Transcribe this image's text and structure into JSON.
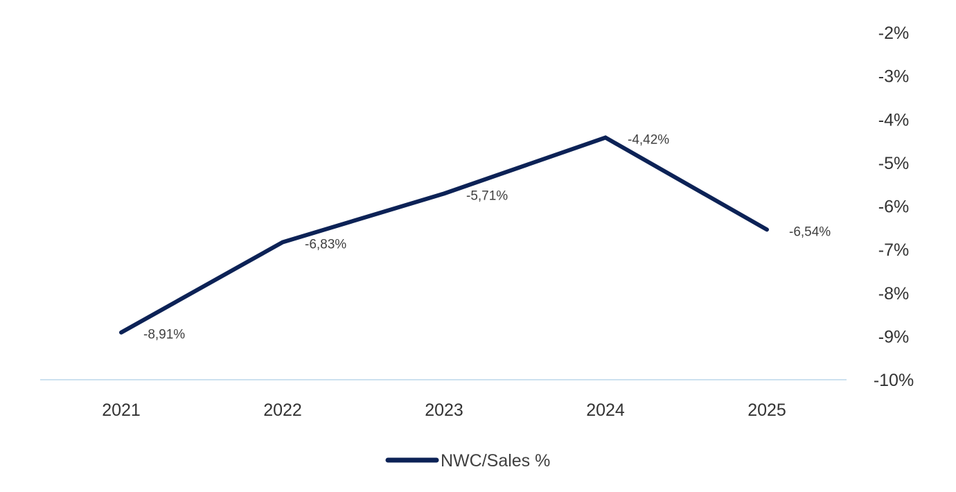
{
  "chart_data": {
    "type": "line",
    "title": "",
    "xlabel": "",
    "ylabel": "",
    "categories": [
      "2021",
      "2022",
      "2023",
      "2024",
      "2025"
    ],
    "series": [
      {
        "name": "NWC/Sales %",
        "values": [
          -8.91,
          -6.83,
          -5.71,
          -4.42,
          -6.54
        ],
        "color": "#0c2256"
      }
    ],
    "data_labels": [
      "-8,91%",
      "-6,83%",
      "-5,71%",
      "-4,42%",
      "-6,54%"
    ],
    "ylim": [
      -10,
      -2
    ],
    "yticks": [
      -2,
      -3,
      -4,
      -5,
      -6,
      -7,
      -8,
      -9,
      -10
    ],
    "ytick_labels": [
      "-2%",
      "-3%",
      "-4%",
      "-5%",
      "-6%",
      "-7%",
      "-8%",
      "-9%",
      "-10%"
    ],
    "y_axis_side": "right",
    "grid": false,
    "legend": "bottom-center",
    "baseline_color": "#bcd7ea"
  }
}
